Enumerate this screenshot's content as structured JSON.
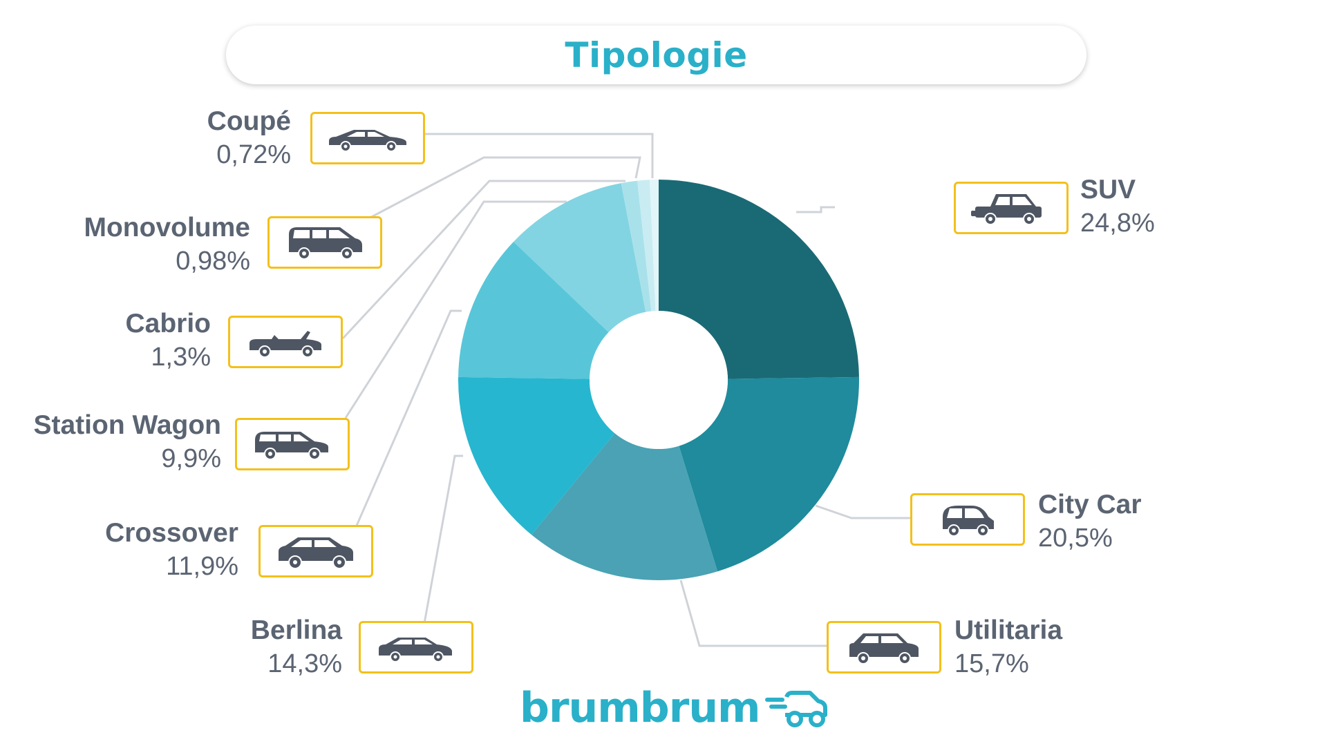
{
  "title": "Tipologie",
  "brand": {
    "name": "brumbrum",
    "accent": "#2ab0c9"
  },
  "chart_data": {
    "type": "pie",
    "title": "Tipologie",
    "unit": "%",
    "slices": [
      {
        "label": "SUV",
        "display": "24,8%",
        "value": 24.8,
        "color": "#1a6a75",
        "icon": "suv-icon"
      },
      {
        "label": "City Car",
        "display": "20,5%",
        "value": 20.5,
        "color": "#1f8b9c",
        "icon": "city-car-icon"
      },
      {
        "label": "Utilitaria",
        "display": "15,7%",
        "value": 15.7,
        "color": "#4aa2b4",
        "icon": "utilitaria-icon"
      },
      {
        "label": "Berlina",
        "display": "14,3%",
        "value": 14.3,
        "color": "#27b6cf",
        "icon": "berlina-icon"
      },
      {
        "label": "Crossover",
        "display": "11,9%",
        "value": 11.9,
        "color": "#58c6d8",
        "icon": "crossover-icon"
      },
      {
        "label": "Station Wagon",
        "display": "9,9%",
        "value": 9.9,
        "color": "#82d4e2",
        "icon": "station-wagon-icon"
      },
      {
        "label": "Cabrio",
        "display": "1,3%",
        "value": 1.3,
        "color": "#a9e1eb",
        "icon": "cabrio-icon"
      },
      {
        "label": "Monovolume",
        "display": "0,98%",
        "value": 0.98,
        "color": "#c8ecf2",
        "icon": "monovolume-icon"
      },
      {
        "label": "Coupé",
        "display": "0,72%",
        "value": 0.72,
        "color": "#e2f5f8",
        "icon": "coupe-icon"
      }
    ]
  }
}
